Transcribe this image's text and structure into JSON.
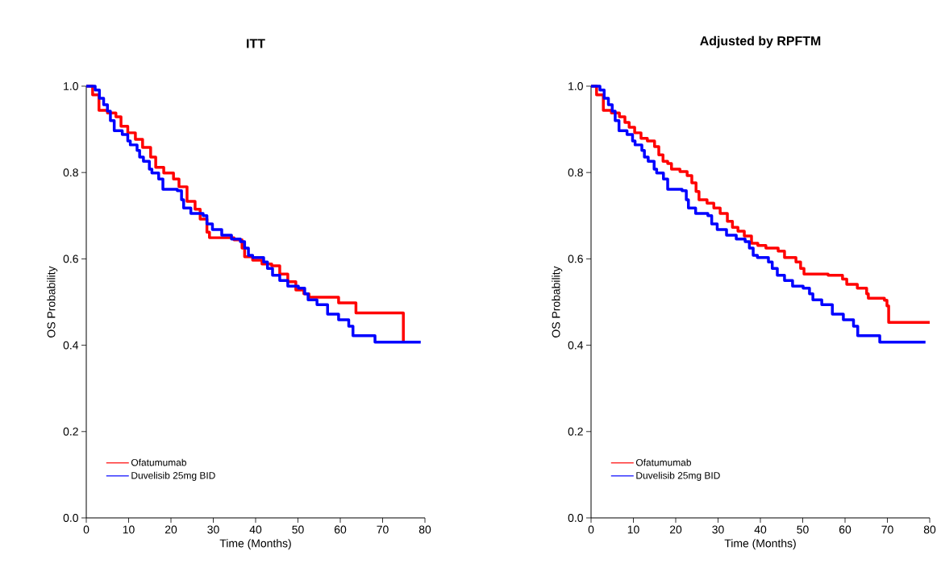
{
  "chart_data": [
    {
      "type": "step",
      "title": "ITT",
      "xlabel": "Time (Months)",
      "ylabel": "OS Probability",
      "xlim": [
        0,
        80
      ],
      "ylim": [
        0,
        1
      ],
      "xticks": [
        0,
        10,
        20,
        30,
        40,
        50,
        60,
        70,
        80
      ],
      "yticks": [
        {
          "value": 0,
          "label": "0.0"
        },
        {
          "value": 0.2,
          "label": "0.2"
        },
        {
          "value": 0.4,
          "label": "0.4"
        },
        {
          "value": 0.6,
          "label": "0.6"
        },
        {
          "value": 0.8,
          "label": "0.8"
        },
        {
          "value": 1,
          "label": "1.0"
        }
      ],
      "legend": "bottom left",
      "series": [
        {
          "name": "Ofatumumab",
          "color": "#ff0000",
          "x": [
            0,
            1.5,
            3,
            5,
            7,
            8.2,
            9.8,
            11.6,
            13.3,
            15.2,
            16.4,
            18.3,
            20.6,
            21.9,
            23.8,
            25.7,
            26.9,
            28.5,
            29.1,
            34.9,
            36.8,
            37.4,
            39.3,
            41.5,
            43.8,
            45.7,
            47.6,
            49.5,
            51.4,
            52.6,
            59.6,
            63.7,
            74.9
          ],
          "values": [
            1.0,
            0.98,
            0.944,
            0.938,
            0.929,
            0.907,
            0.892,
            0.877,
            0.858,
            0.836,
            0.812,
            0.799,
            0.785,
            0.767,
            0.733,
            0.715,
            0.692,
            0.662,
            0.649,
            0.644,
            0.625,
            0.605,
            0.597,
            0.588,
            0.584,
            0.565,
            0.547,
            0.528,
            0.519,
            0.511,
            0.498,
            0.475,
            0.405
          ]
        },
        {
          "name": "Duvelisib 25mg BID",
          "color": "#0000ff",
          "x": [
            0,
            2.1,
            3.1,
            4.1,
            5,
            5.7,
            6.6,
            8.5,
            9.8,
            10.4,
            12,
            12.6,
            13.5,
            14.9,
            15.5,
            17.1,
            18.1,
            21.5,
            22.5,
            23,
            24.7,
            27.6,
            28.5,
            29.8,
            32,
            34.3,
            36.4,
            37.4,
            38.3,
            39.3,
            41.9,
            42.8,
            44,
            45.7,
            47.6,
            50.1,
            51.6,
            52.4,
            54.5,
            57,
            59.6,
            62,
            63,
            68.2,
            79
          ],
          "values": [
            1.0,
            0.991,
            0.972,
            0.957,
            0.942,
            0.92,
            0.897,
            0.888,
            0.873,
            0.864,
            0.851,
            0.836,
            0.826,
            0.808,
            0.799,
            0.785,
            0.761,
            0.758,
            0.737,
            0.718,
            0.705,
            0.7,
            0.681,
            0.668,
            0.655,
            0.646,
            0.64,
            0.625,
            0.608,
            0.603,
            0.593,
            0.578,
            0.562,
            0.55,
            0.537,
            0.532,
            0.519,
            0.505,
            0.494,
            0.472,
            0.459,
            0.444,
            0.422,
            0.407,
            0.407
          ]
        }
      ]
    },
    {
      "type": "step",
      "title": "Adjusted by RPFTM",
      "xlabel": "Time (Months)",
      "ylabel": "OS Probability",
      "xlim": [
        0,
        80
      ],
      "ylim": [
        0,
        1
      ],
      "xticks": [
        0,
        10,
        20,
        30,
        40,
        50,
        60,
        70,
        80
      ],
      "yticks": [
        {
          "value": 0,
          "label": "0.0"
        },
        {
          "value": 0.2,
          "label": "0.2"
        },
        {
          "value": 0.4,
          "label": "0.4"
        },
        {
          "value": 0.6,
          "label": "0.6"
        },
        {
          "value": 0.8,
          "label": "0.8"
        },
        {
          "value": 1,
          "label": "1.0"
        }
      ],
      "legend": "bottom left",
      "series": [
        {
          "name": "Ofatumumab",
          "color": "#ff0000",
          "x": [
            0,
            1.3,
            2.9,
            4.8,
            6.7,
            8,
            9,
            10.3,
            11.8,
            13.3,
            15,
            16,
            17,
            18.1,
            19,
            21,
            22.7,
            23.8,
            24.8,
            25.5,
            27.4,
            29,
            30.5,
            32.2,
            33.4,
            34.7,
            36.2,
            37.9,
            39.4,
            41.3,
            44.2,
            45.7,
            48.4,
            49.5,
            50.3,
            56,
            59.4,
            60.4,
            62.9,
            65.1,
            65.5,
            69.3,
            69.9,
            70.3,
            80
          ],
          "values": [
            1.0,
            0.98,
            0.944,
            0.938,
            0.929,
            0.916,
            0.905,
            0.892,
            0.879,
            0.873,
            0.86,
            0.841,
            0.826,
            0.821,
            0.808,
            0.802,
            0.793,
            0.776,
            0.756,
            0.737,
            0.729,
            0.718,
            0.705,
            0.687,
            0.673,
            0.664,
            0.653,
            0.636,
            0.631,
            0.625,
            0.618,
            0.603,
            0.593,
            0.578,
            0.565,
            0.562,
            0.553,
            0.541,
            0.532,
            0.519,
            0.509,
            0.504,
            0.491,
            0.453,
            0.453
          ]
        },
        {
          "name": "Duvelisib 25mg BID",
          "color": "#0000ff",
          "x": [
            0,
            2.1,
            3.1,
            4.1,
            5,
            5.7,
            6.6,
            8.5,
            9.8,
            10.4,
            12,
            12.6,
            13.5,
            14.9,
            15.5,
            17.1,
            18.1,
            21.5,
            22.5,
            23,
            24.7,
            27.6,
            28.5,
            29.8,
            32,
            34.3,
            36.4,
            37.4,
            38.3,
            39.3,
            41.9,
            42.8,
            44,
            45.7,
            47.6,
            50.1,
            51.6,
            52.4,
            54.5,
            57,
            59.6,
            62,
            63,
            68.2,
            79
          ],
          "values": [
            1.0,
            0.991,
            0.972,
            0.957,
            0.942,
            0.92,
            0.897,
            0.888,
            0.873,
            0.864,
            0.851,
            0.836,
            0.826,
            0.808,
            0.799,
            0.785,
            0.761,
            0.758,
            0.737,
            0.718,
            0.705,
            0.7,
            0.681,
            0.668,
            0.655,
            0.646,
            0.64,
            0.625,
            0.608,
            0.603,
            0.593,
            0.578,
            0.562,
            0.55,
            0.537,
            0.532,
            0.519,
            0.505,
            0.494,
            0.472,
            0.459,
            0.444,
            0.422,
            0.407,
            0.407
          ]
        }
      ]
    }
  ]
}
